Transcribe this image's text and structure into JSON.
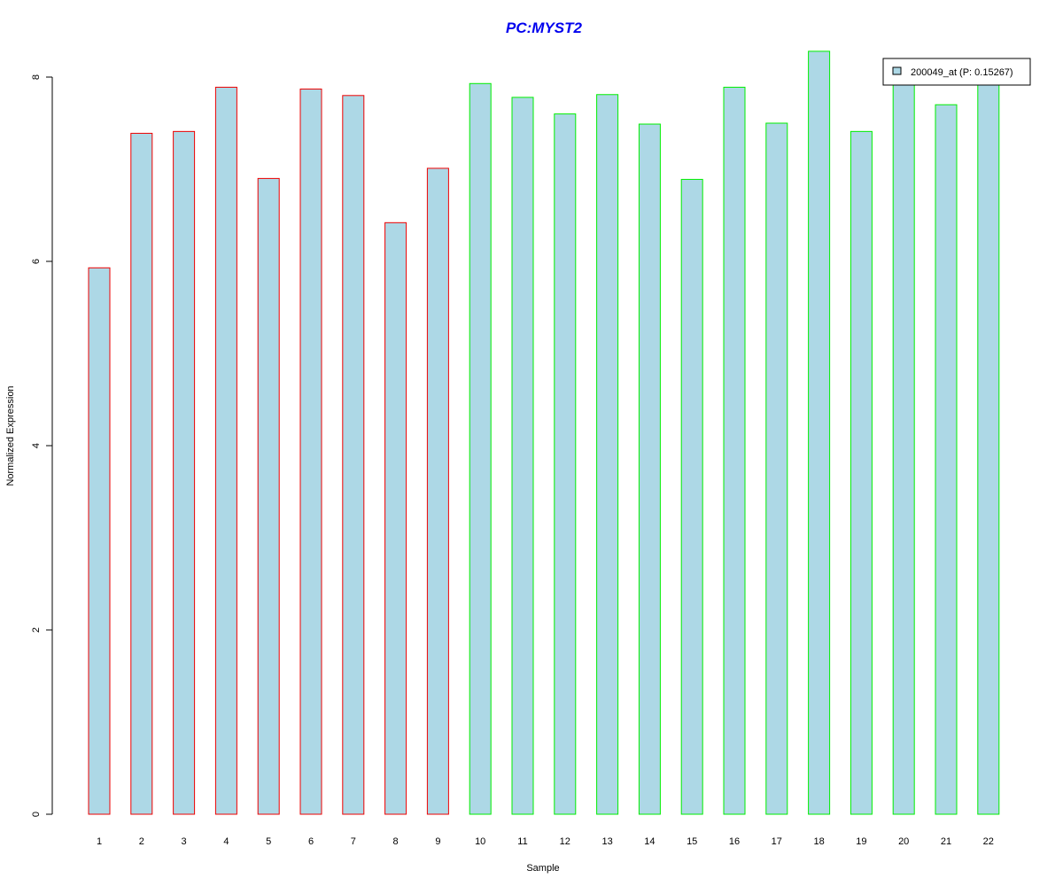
{
  "chart_data": {
    "type": "bar",
    "title": "PC:MYST2",
    "xlabel": "Sample",
    "ylabel": "Normalized Expression",
    "ylim": [
      0,
      8.3
    ],
    "yticks": [
      0,
      2,
      4,
      6,
      8
    ],
    "categories": [
      "1",
      "2",
      "3",
      "4",
      "5",
      "6",
      "7",
      "8",
      "9",
      "10",
      "11",
      "12",
      "13",
      "14",
      "15",
      "16",
      "17",
      "18",
      "19",
      "20",
      "21",
      "22"
    ],
    "values": [
      5.93,
      7.39,
      7.41,
      7.89,
      6.9,
      7.87,
      7.8,
      6.42,
      7.01,
      7.93,
      7.78,
      7.6,
      7.81,
      7.49,
      6.89,
      7.89,
      7.5,
      8.28,
      7.41,
      8.0,
      7.7,
      7.98
    ],
    "groups": [
      "red",
      "red",
      "red",
      "red",
      "red",
      "red",
      "red",
      "red",
      "red",
      "green",
      "green",
      "green",
      "green",
      "green",
      "green",
      "green",
      "green",
      "green",
      "green",
      "green",
      "green",
      "green"
    ],
    "fill_color": "#add8e6",
    "border_colors": {
      "red": "#ee0000",
      "green": "#00ee00"
    },
    "legend": {
      "label": "200049_at (P: 0.15267)",
      "placement": "top-right"
    }
  }
}
